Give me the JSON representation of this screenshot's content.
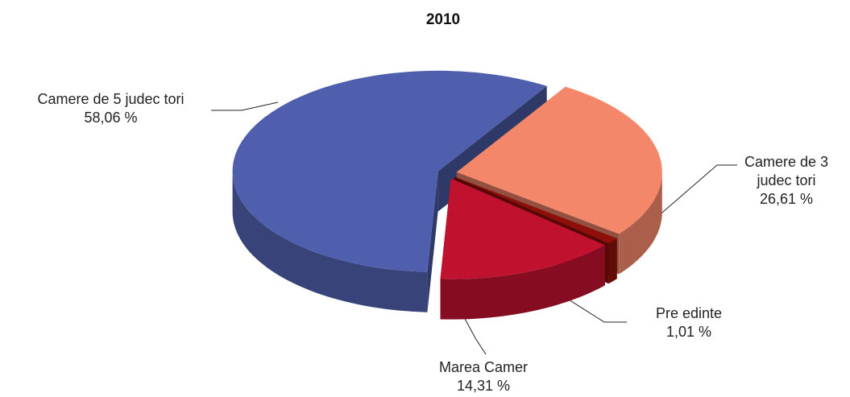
{
  "chart_data": {
    "type": "pie",
    "title": "2010",
    "categories": [
      "Camere de 3 judec tori",
      "Pre edinte",
      "Marea Camer",
      "Camere de 5 judec tori"
    ],
    "values": [
      26.61,
      1.01,
      14.31,
      58.06
    ],
    "value_labels": [
      "26,61 %",
      "1,01 %",
      "14,31 %",
      "58,06 %"
    ],
    "colors": [
      "#f4876a",
      "#8e0f0a",
      "#c0112f",
      "#4f5fad"
    ]
  }
}
